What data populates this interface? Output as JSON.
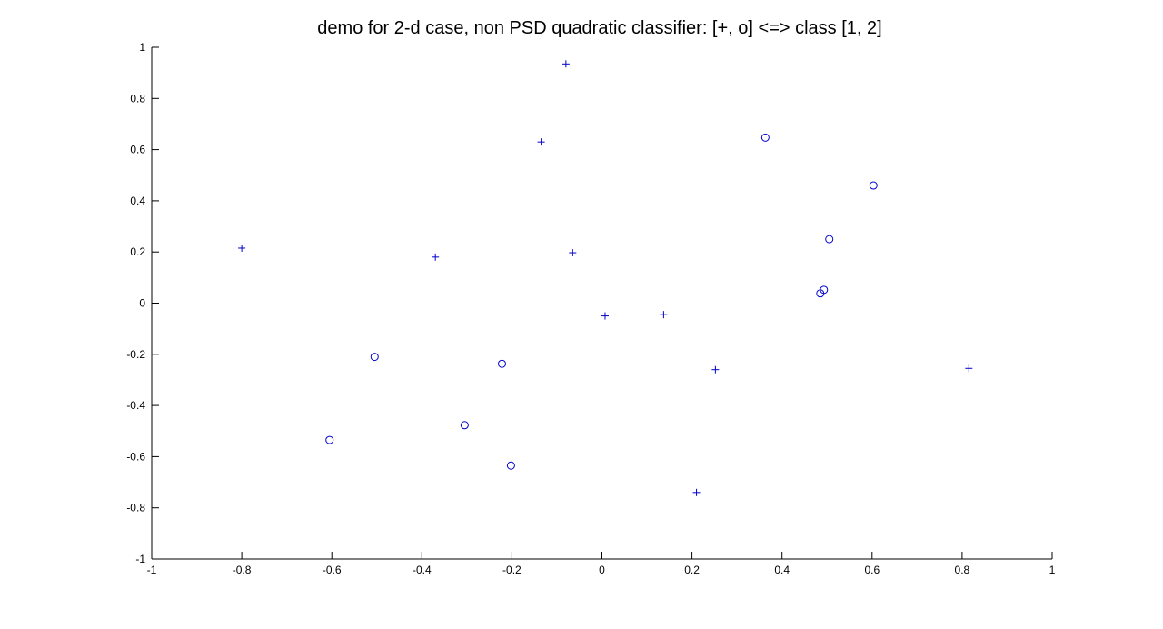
{
  "chart_data": {
    "type": "scatter",
    "title": "demo for 2-d case, non PSD quadratic classifier:  [+, o] <=> class [1, 2]",
    "xlabel": "",
    "ylabel": "",
    "xlim": [
      -1,
      1
    ],
    "ylim": [
      -1,
      1
    ],
    "grid": false,
    "xticks": [
      -1,
      -0.8,
      -0.6,
      -0.4,
      -0.2,
      0,
      0.2,
      0.4,
      0.6,
      0.8,
      1
    ],
    "xtick_labels": [
      "-1",
      "-0.8",
      "-0.6",
      "-0.4",
      "-0.2",
      "0",
      "0.2",
      "0.4",
      "0.6",
      "0.8",
      "1"
    ],
    "yticks": [
      -1,
      -0.8,
      -0.6,
      -0.4,
      -0.2,
      0,
      0.2,
      0.4,
      0.6,
      0.8,
      1
    ],
    "ytick_labels": [
      "-1",
      "-0.8",
      "-0.6",
      "-0.4",
      "-0.2",
      "0",
      "0.2",
      "0.4",
      "0.6",
      "0.8",
      "1"
    ],
    "marker_color": "#0000cc",
    "series": [
      {
        "marker": "plus",
        "points": [
          [
            -0.8,
            0.215
          ],
          [
            -0.37,
            0.18
          ],
          [
            -0.08,
            0.935
          ],
          [
            -0.135,
            0.63
          ],
          [
            -0.065,
            0.197
          ],
          [
            0.007,
            -0.05
          ],
          [
            0.137,
            -0.045
          ],
          [
            0.252,
            -0.26
          ],
          [
            0.21,
            -0.74
          ],
          [
            0.815,
            -0.255
          ]
        ]
      },
      {
        "marker": "circle",
        "points": [
          [
            -0.605,
            -0.535
          ],
          [
            -0.505,
            -0.21
          ],
          [
            -0.305,
            -0.477
          ],
          [
            -0.222,
            -0.237
          ],
          [
            -0.202,
            -0.635
          ],
          [
            0.363,
            0.647
          ],
          [
            0.603,
            0.46
          ],
          [
            0.505,
            0.25
          ],
          [
            0.493,
            0.052
          ],
          [
            0.485,
            0.038
          ]
        ]
      }
    ]
  }
}
